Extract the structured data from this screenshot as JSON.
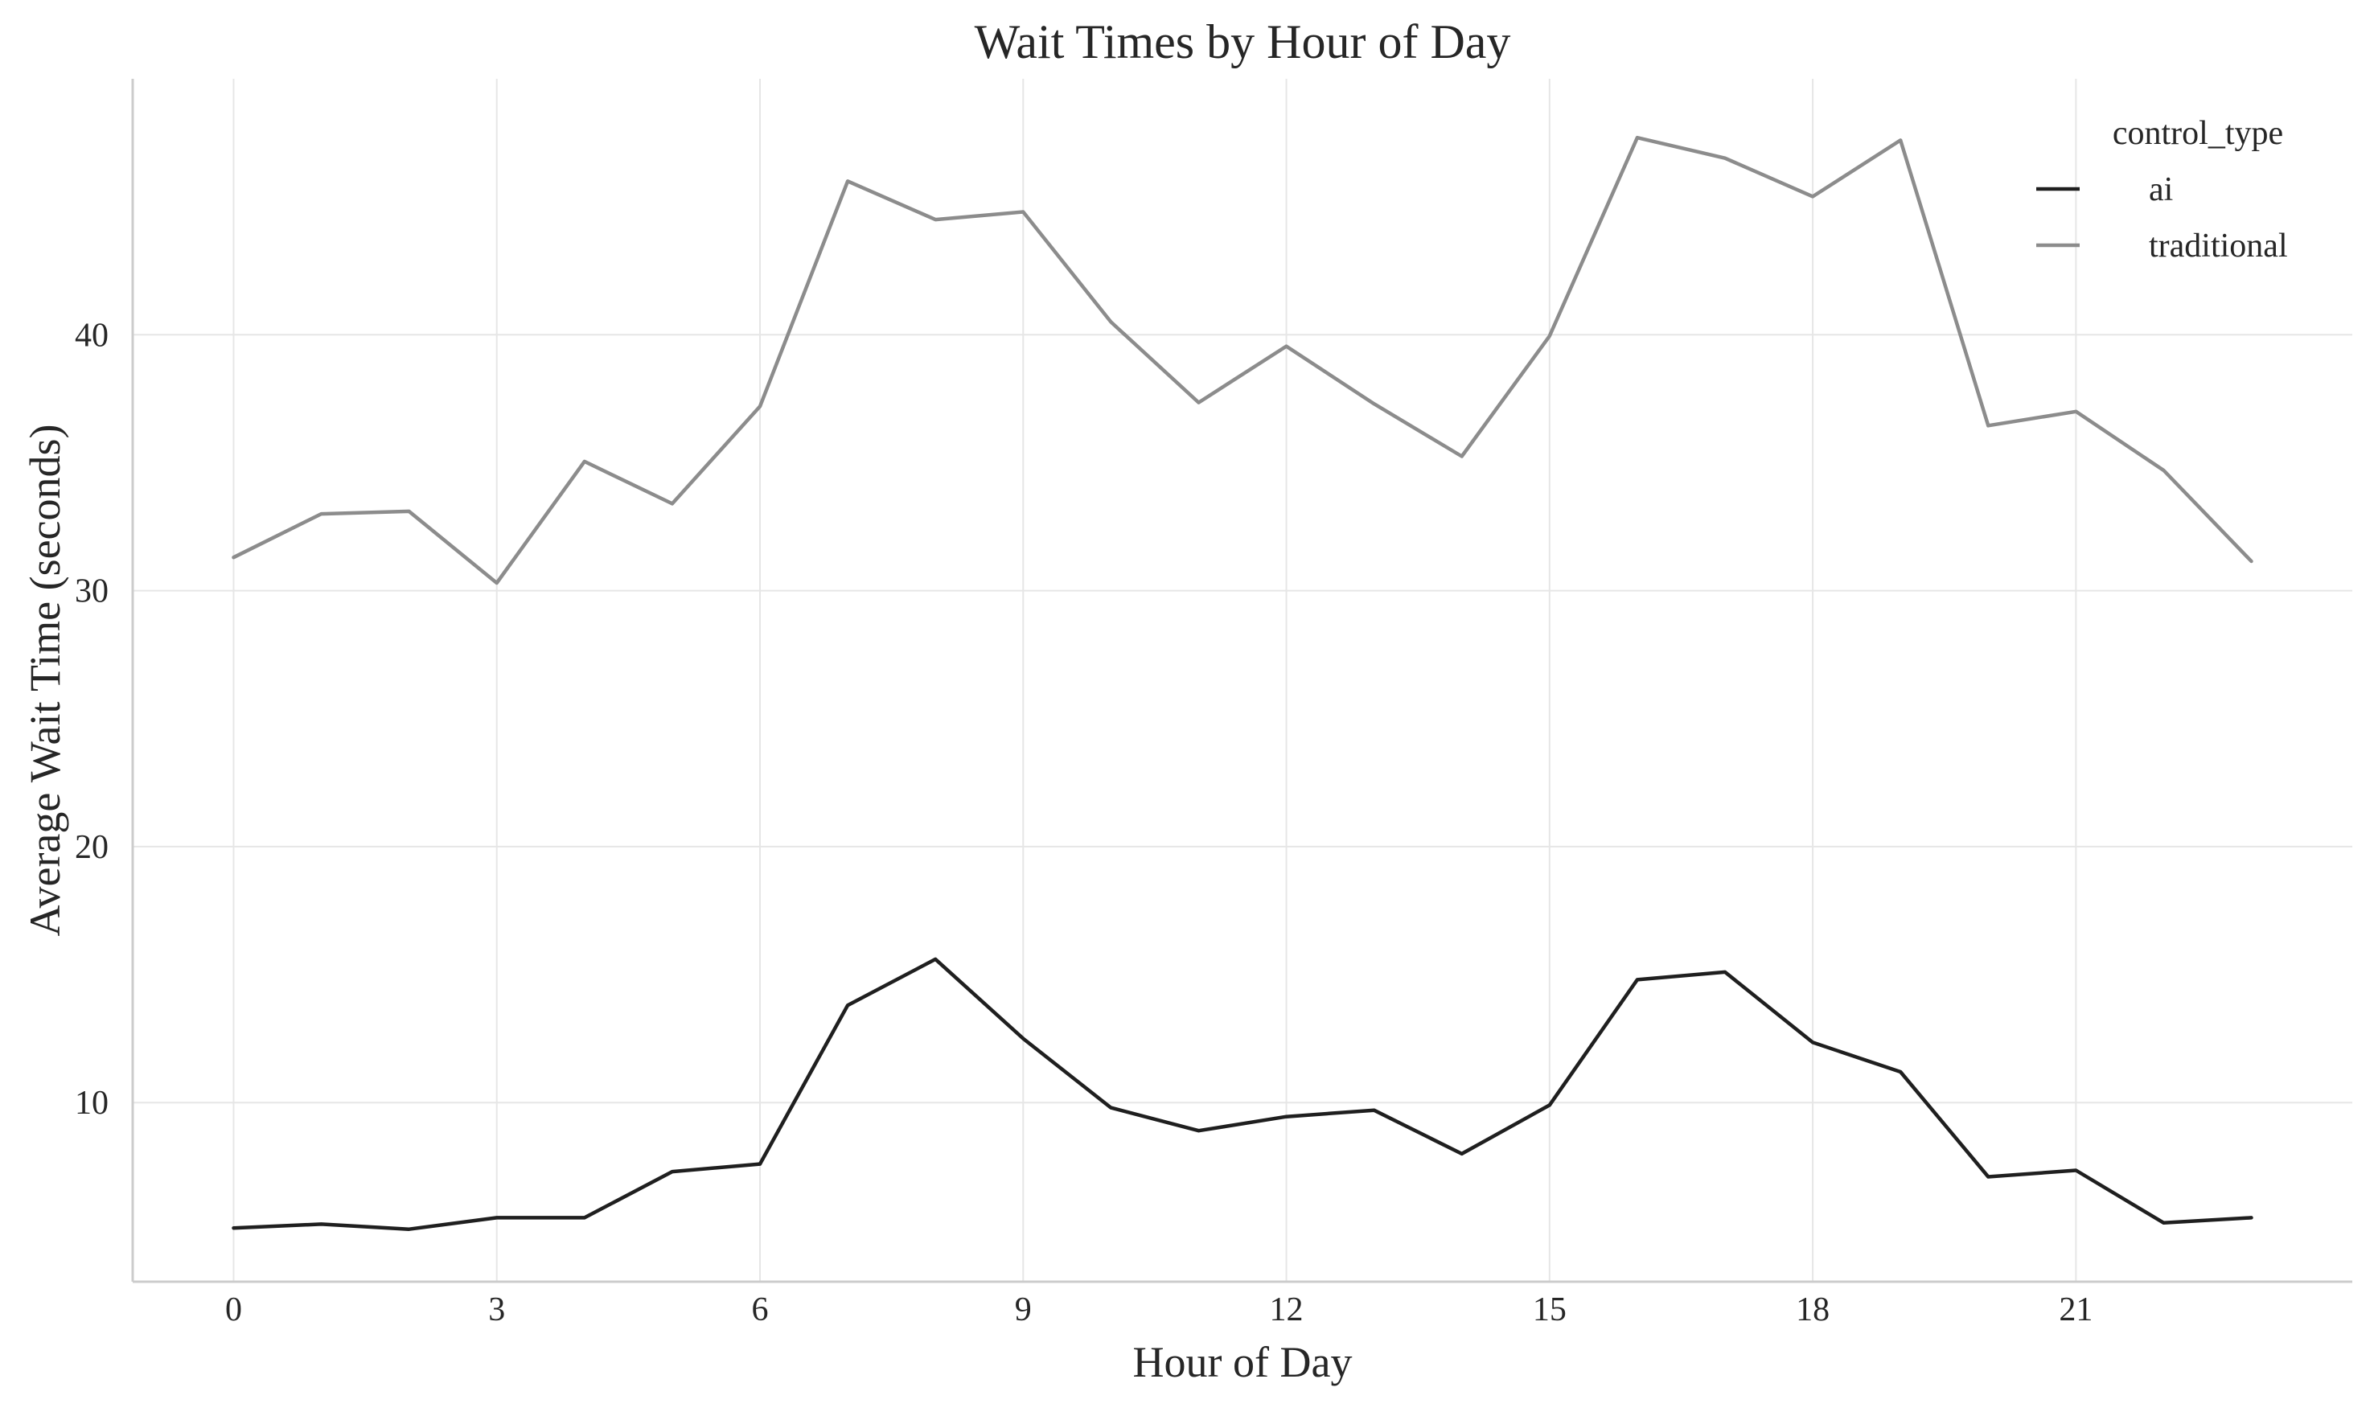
{
  "chart_data": {
    "type": "line",
    "title": "Wait Times by Hour of Day",
    "xlabel": "Hour of Day",
    "ylabel": "Average Wait Time (seconds)",
    "x": [
      0,
      1,
      2,
      3,
      4,
      5,
      6,
      7,
      8,
      9,
      10,
      11,
      12,
      13,
      14,
      15,
      16,
      17,
      18,
      19,
      20,
      21,
      22,
      23
    ],
    "xticks": [
      0,
      3,
      6,
      9,
      12,
      15,
      18,
      21
    ],
    "yticks": [
      10,
      20,
      30,
      40
    ],
    "xlim": [
      -1.15,
      24.15
    ],
    "ylim": [
      3,
      50
    ],
    "grid": true,
    "legend": {
      "title": "control_type",
      "placement": "top-right"
    },
    "series": [
      {
        "name": "ai",
        "color": "#1f1f1f",
        "values": [
          5.1,
          5.25,
          5.05,
          5.5,
          5.5,
          7.3,
          7.6,
          13.8,
          15.6,
          12.5,
          9.8,
          8.9,
          9.45,
          9.7,
          8.0,
          9.9,
          14.8,
          15.1,
          12.35,
          11.2,
          7.1,
          7.35,
          5.3,
          5.5
        ]
      },
      {
        "name": "traditional",
        "color": "#8c8c8c",
        "values": [
          31.3,
          33.0,
          33.1,
          30.3,
          35.05,
          33.4,
          37.2,
          46.0,
          44.5,
          44.8,
          40.5,
          37.35,
          39.55,
          37.3,
          35.25,
          39.95,
          47.7,
          46.9,
          45.4,
          47.6,
          36.45,
          37.0,
          34.7,
          31.15
        ]
      }
    ]
  }
}
